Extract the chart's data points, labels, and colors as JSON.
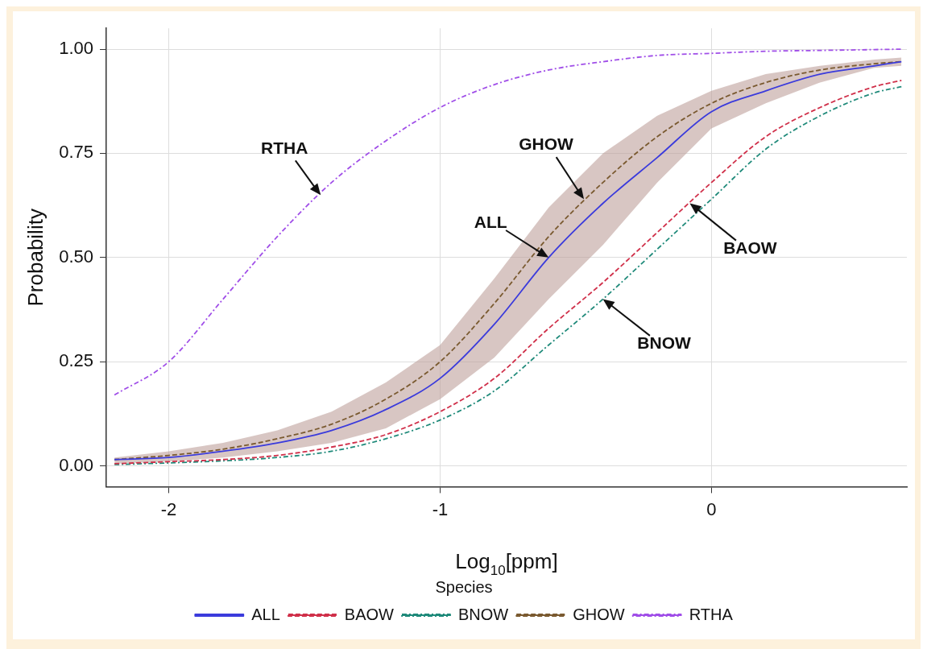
{
  "chart_data": {
    "type": "line",
    "xlabel": "Log$_{10}$[ppm]",
    "ylabel": "Probability",
    "legend_title": "Species",
    "legend": "bottom",
    "grid": true,
    "marker": "none",
    "x": [
      -2.2,
      -2.0,
      -1.8,
      -1.6,
      -1.4,
      -1.2,
      -1.0,
      -0.8,
      -0.6,
      -0.4,
      -0.2,
      0,
      0.2,
      0.4,
      0.6,
      0.7
    ],
    "xlim": [
      -2.23,
      0.72
    ],
    "xticks": [
      -2,
      -1,
      0
    ],
    "ylim": [
      -0.05,
      1.05
    ],
    "yticks": [
      {
        "value": 0,
        "label": "0.00"
      },
      {
        "value": 0.25,
        "label": "0.25"
      },
      {
        "value": 0.5,
        "label": "0.50"
      },
      {
        "value": 0.75,
        "label": "0.75"
      },
      {
        "value": 1,
        "label": "1.00"
      }
    ],
    "series": [
      {
        "name": "ALL",
        "color": "#3b3bdc",
        "line_style": "solid",
        "values": [
          0.015,
          0.02,
          0.035,
          0.055,
          0.085,
          0.135,
          0.21,
          0.34,
          0.5,
          0.63,
          0.74,
          0.85,
          0.9,
          0.94,
          0.96,
          0.97
        ]
      },
      {
        "name": "BAOW",
        "color": "#d0304a",
        "line_style": "dashed",
        "values": [
          0.005,
          0.01,
          0.015,
          0.025,
          0.045,
          0.075,
          0.13,
          0.21,
          0.33,
          0.44,
          0.56,
          0.68,
          0.79,
          0.86,
          0.91,
          0.925
        ]
      },
      {
        "name": "BNOW",
        "color": "#1f8a7a",
        "line_style": "dashdot",
        "values": [
          0.003,
          0.007,
          0.012,
          0.02,
          0.035,
          0.065,
          0.11,
          0.18,
          0.29,
          0.4,
          0.52,
          0.64,
          0.76,
          0.84,
          0.895,
          0.91
        ]
      },
      {
        "name": "GHOW",
        "color": "#7a5a30",
        "line_style": "dashed",
        "values": [
          0.015,
          0.025,
          0.04,
          0.065,
          0.1,
          0.16,
          0.25,
          0.39,
          0.55,
          0.68,
          0.79,
          0.87,
          0.92,
          0.95,
          0.965,
          0.97
        ],
        "lower": [
          0.005,
          0.01,
          0.02,
          0.035,
          0.055,
          0.09,
          0.16,
          0.26,
          0.4,
          0.53,
          0.68,
          0.81,
          0.87,
          0.92,
          0.955,
          0.96
        ],
        "upper": [
          0.02,
          0.035,
          0.055,
          0.085,
          0.13,
          0.2,
          0.29,
          0.45,
          0.62,
          0.75,
          0.84,
          0.9,
          0.94,
          0.96,
          0.975,
          0.98
        ]
      },
      {
        "name": "RTHA",
        "color": "#a04ee8",
        "line_style": "dashdot",
        "values": [
          0.17,
          0.25,
          0.4,
          0.55,
          0.68,
          0.78,
          0.86,
          0.915,
          0.95,
          0.97,
          0.985,
          0.99,
          0.995,
          0.997,
          0.999,
          1.0
        ]
      }
    ],
    "annotations": [
      {
        "text": "RTHA",
        "x": -1.44,
        "y": 0.65
      },
      {
        "text": "GHOW",
        "x": -0.47,
        "y": 0.64
      },
      {
        "text": "ALL",
        "x": -0.6,
        "y": 0.5
      },
      {
        "text": "BAOW",
        "x": -0.08,
        "y": 0.63
      },
      {
        "text": "BNOW",
        "x": -0.4,
        "y": 0.4
      }
    ]
  }
}
